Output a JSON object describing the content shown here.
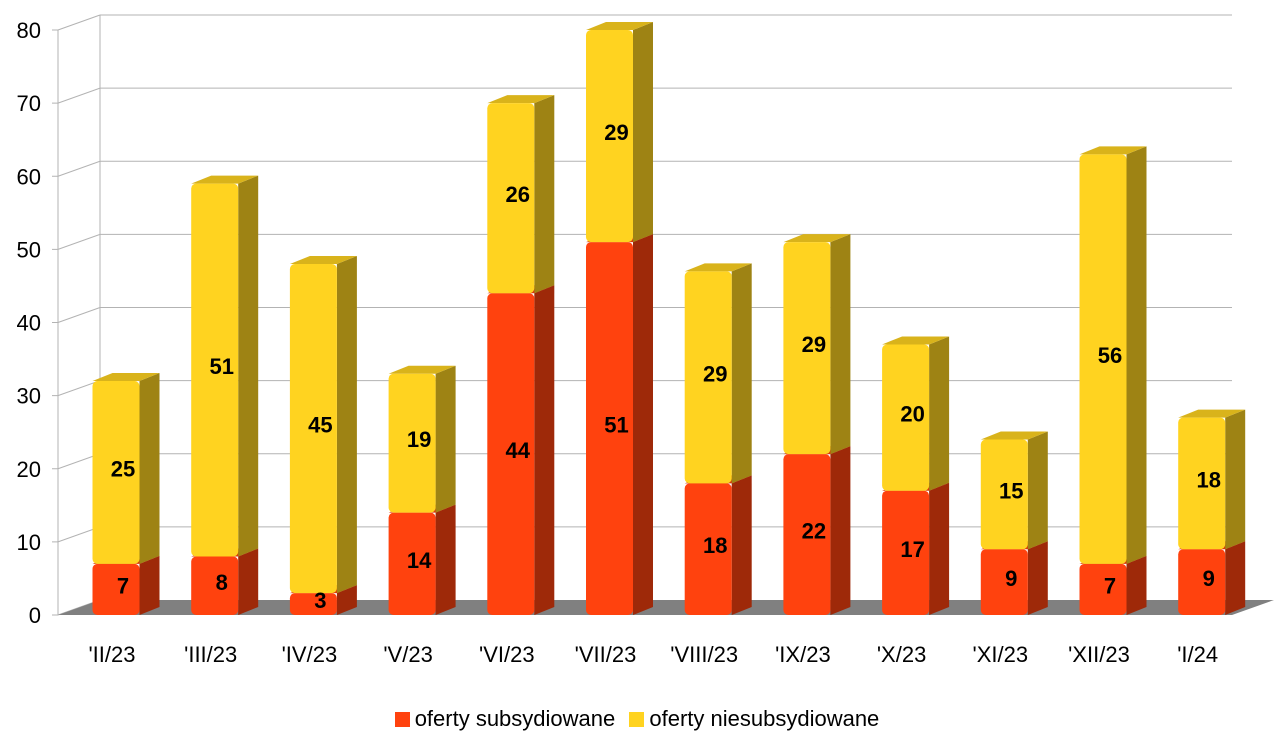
{
  "chart_data": {
    "type": "bar",
    "stacked": true,
    "three_d": true,
    "categories": [
      "'II/23",
      "'III/23",
      "'IV/23",
      "'V/23",
      "'VI/23",
      "'VII/23",
      "'VIII/23",
      "'IX/23",
      "'X/23",
      "'XI/23",
      "'XII/23",
      "'I/24"
    ],
    "series": [
      {
        "name": "oferty subsydiowane",
        "values": [
          7,
          8,
          3,
          14,
          44,
          51,
          18,
          22,
          17,
          9,
          7,
          9
        ],
        "color": "#ff420e"
      },
      {
        "name": "oferty niesubsydiowane",
        "values": [
          25,
          51,
          45,
          19,
          26,
          29,
          29,
          29,
          20,
          15,
          56,
          18
        ],
        "color": "#ffd320"
      }
    ],
    "ylim": [
      0,
      80
    ],
    "yticks": [
      "0",
      "10",
      "20",
      "30",
      "40",
      "50",
      "60",
      "70",
      "80"
    ],
    "grid": true,
    "legend": "bottom"
  }
}
